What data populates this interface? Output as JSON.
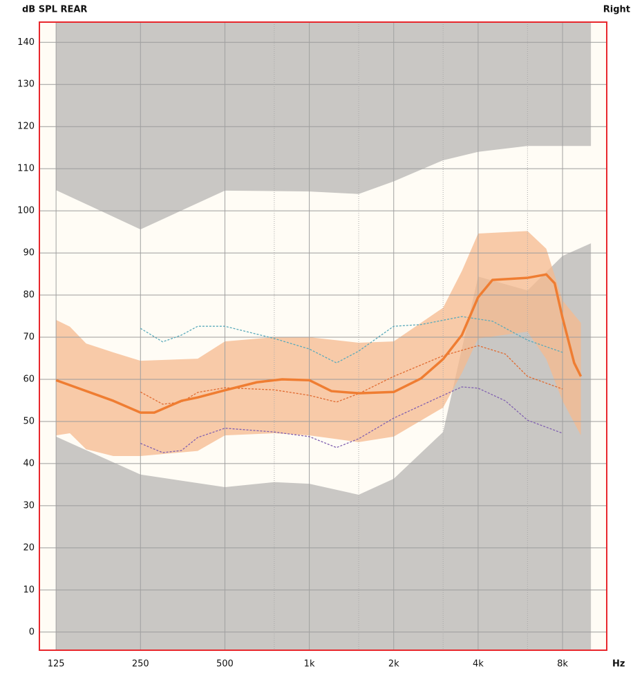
{
  "chart_data": {
    "type": "line",
    "title": "dB SPL REAR",
    "subtitle": "Right",
    "x_label": "Hz",
    "log_x": true,
    "grid": true,
    "xlim": [
      109,
      11500
    ],
    "ylim": [
      -4.3,
      144.8
    ],
    "xticks": [
      125,
      250,
      500,
      {
        "value": 1000,
        "label": "1k"
      },
      {
        "value": 2000,
        "label": "2k"
      },
      {
        "value": 4000,
        "label": "4k"
      },
      {
        "value": 8000,
        "label": "8k"
      }
    ],
    "xminor": [
      750,
      1500,
      3000,
      6000
    ],
    "yticks": [
      0,
      10,
      20,
      30,
      40,
      50,
      60,
      70,
      80,
      90,
      100,
      110,
      120,
      130,
      140
    ],
    "areas": [
      {
        "color": "#c9c7c4",
        "fill": "above",
        "x": [
          125,
          250,
          500,
          1000,
          1500,
          2000,
          3000,
          4000,
          6000,
          8000,
          10100
        ],
        "values": [
          104.9,
          95.6,
          104.8,
          104.6,
          104,
          107,
          112,
          114,
          115.4,
          115.4,
          115.4
        ]
      },
      {
        "color": "#c9c7c4",
        "fill": "below",
        "x": [
          125,
          250,
          500,
          750,
          1000,
          1500,
          2000,
          3000,
          4000,
          6000,
          8000,
          10100
        ],
        "values": [
          46.4,
          37.4,
          34.4,
          35.6,
          35.2,
          32.6,
          36.4,
          47.5,
          84.4,
          81.1,
          89.3,
          92.3
        ]
      },
      {
        "color": "#f5b98e",
        "fill": "band",
        "x": [
          125,
          140,
          160,
          200,
          250,
          400,
          500,
          750,
          1000,
          1500,
          2000,
          3000,
          3500,
          4000,
          6000,
          7000,
          8000,
          9300
        ],
        "upper": [
          74.1,
          72.5,
          68.5,
          66.4,
          64.4,
          64.9,
          69,
          70,
          70,
          68.7,
          69,
          77,
          85.7,
          94.6,
          95.2,
          91,
          78.7,
          73.4
        ],
        "lower": [
          46.7,
          47.2,
          43.4,
          41.8,
          41.8,
          43,
          46.7,
          47.2,
          46.7,
          45.1,
          46.4,
          53.3,
          61.5,
          69.7,
          71.3,
          64.8,
          54.9,
          46.7
        ]
      }
    ],
    "series": [
      {
        "color": "#5aaabb",
        "dash": true,
        "x": [
          250,
          300,
          350,
          400,
          500,
          750,
          1000,
          1250,
          1500,
          2000,
          2500,
          3500,
          4500,
          6000,
          8000
        ],
        "values": [
          72.1,
          68.9,
          70.5,
          72.6,
          72.6,
          69.7,
          67.2,
          63.9,
          66.7,
          72.6,
          73,
          74.9,
          73.8,
          69.3,
          66.4
        ]
      },
      {
        "color": "#e06a30",
        "dash": true,
        "x": [
          250,
          300,
          350,
          400,
          500,
          750,
          1000,
          1250,
          1500,
          2000,
          3000,
          4000,
          5000,
          6000,
          8000
        ],
        "values": [
          57,
          54.1,
          54.6,
          56.9,
          58,
          57.5,
          56.2,
          54.6,
          56.6,
          60.7,
          65.6,
          68,
          66,
          60.7,
          57.7
        ]
      },
      {
        "color": "#8060b0",
        "dash": true,
        "x": [
          250,
          300,
          350,
          400,
          500,
          750,
          1000,
          1250,
          1500,
          2000,
          3000,
          3500,
          4000,
          5000,
          6000,
          8000
        ],
        "values": [
          44.8,
          42.6,
          43.1,
          46.2,
          48.4,
          47.5,
          46.4,
          43.8,
          45.9,
          50.8,
          56.2,
          58.2,
          57.9,
          54.9,
          50.3,
          47.2
        ]
      },
      {
        "color": "#ef7d32",
        "dash": false,
        "x": [
          125,
          200,
          250,
          280,
          350,
          400,
          500,
          650,
          800,
          1000,
          1200,
          1500,
          2000,
          2500,
          3000,
          3500,
          4000,
          4500,
          6000,
          7000,
          7500,
          8000,
          8800,
          9300
        ],
        "values": [
          59.8,
          54.9,
          52.1,
          52.1,
          54.9,
          55.7,
          57.4,
          59.3,
          60,
          59.8,
          57.2,
          56.7,
          57,
          60.2,
          64.8,
          70.5,
          79.5,
          83.6,
          84.1,
          84.9,
          82.8,
          74.6,
          63.9,
          60.7
        ]
      }
    ]
  }
}
